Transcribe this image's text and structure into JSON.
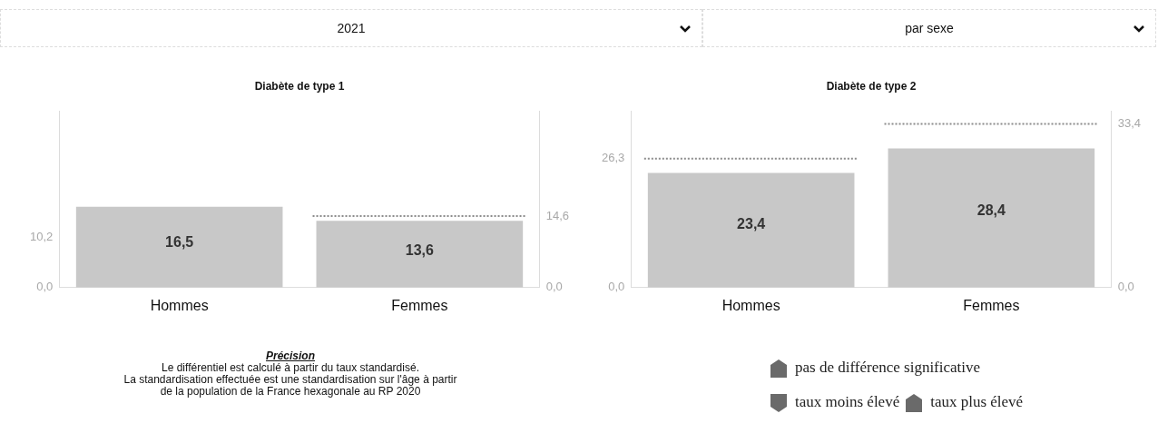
{
  "chart_data": [
    {
      "type": "bar",
      "title": "Diabète de type 1",
      "categories": [
        "Hommes",
        "Femmes"
      ],
      "series": [
        {
          "color": "#c8c8c8",
          "values": [
            16.5,
            null
          ],
          "value_labels": [
            "16,5",
            null
          ]
        },
        {
          "color": "#c8c8c8",
          "values": [
            null,
            13.6
          ],
          "value_labels": [
            null,
            "13,6"
          ],
          "axis": "y2"
        }
      ],
      "ylim": [
        0,
        36
      ],
      "yticks": [
        {
          "value": 0,
          "label": "0,0"
        },
        {
          "value": 10.2,
          "label": "10,2"
        }
      ],
      "y2lim": [
        0,
        36
      ],
      "y2ticks": [
        {
          "value": 0,
          "label": "0,0"
        },
        {
          "value": 14.6,
          "label": "14,6"
        }
      ],
      "ref_lines": [
        {
          "axis": "y2",
          "value": 14.6,
          "color": "#8c8c8c",
          "line_style": "dotted"
        }
      ],
      "grid": false,
      "legend": false,
      "annotations": [
        "2021",
        "par sexe",
        "Précision",
        "Le différentiel est calculé à partir du taux standardisé.",
        "La standardisation effectuée est une standardisation sur l'âge à partir",
        "de la population de la France hexagonale au RP 2020"
      ]
    },
    {
      "type": "bar",
      "title": "Diabète de type 2",
      "categories": [
        "Hommes",
        "Femmes"
      ],
      "series": [
        {
          "color": "#c8c8c8",
          "values": [
            23.4,
            null
          ],
          "value_labels": [
            "23,4",
            null
          ]
        },
        {
          "color": "#c8c8c8",
          "values": [
            null,
            28.4
          ],
          "value_labels": [
            null,
            "28,4"
          ],
          "axis": "y2"
        }
      ],
      "ylim": [
        0,
        36
      ],
      "yticks": [
        {
          "value": 0,
          "label": "0,0"
        },
        {
          "value": 26.3,
          "label": "26,3"
        }
      ],
      "y2lim": [
        0,
        36
      ],
      "y2ticks": [
        {
          "value": 0,
          "label": "0,0"
        },
        {
          "value": 33.4,
          "label": "33,4"
        }
      ],
      "ref_lines": [
        {
          "axis": "y",
          "value": 26.3,
          "color": "#8c8c8c",
          "line_style": "dotted"
        },
        {
          "axis": "y2",
          "value": 33.4,
          "color": "#8c8c8c",
          "line_style": "dotted"
        }
      ],
      "grid": false,
      "legend": false,
      "annotations": [
        "pas de différence significative",
        "taux moins élevé",
        "taux plus élevé"
      ]
    }
  ]
}
